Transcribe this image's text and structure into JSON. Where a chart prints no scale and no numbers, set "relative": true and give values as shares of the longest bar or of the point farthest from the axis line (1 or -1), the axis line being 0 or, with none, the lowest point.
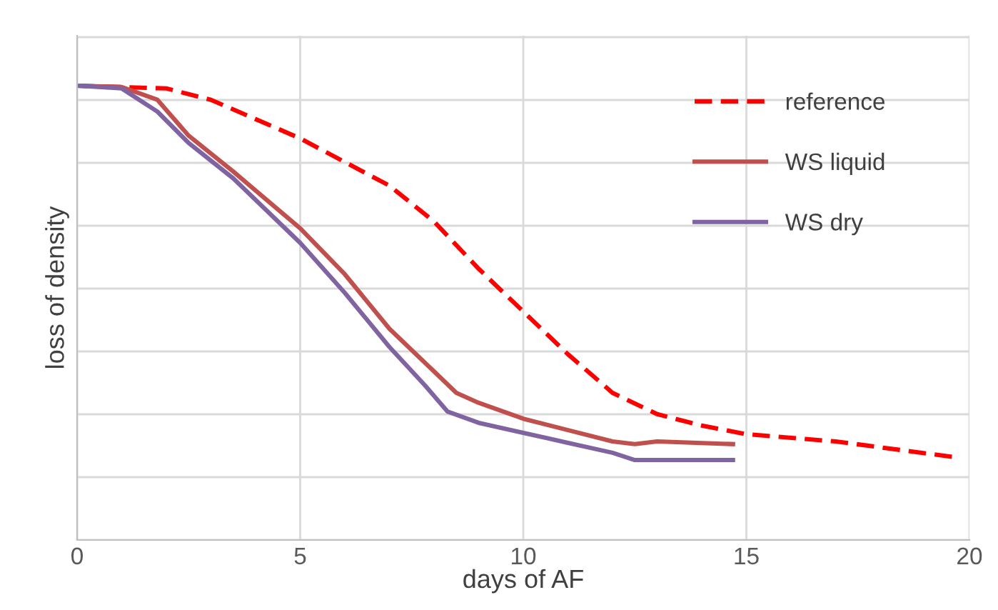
{
  "chart_data": {
    "type": "line",
    "xlabel": "days of AF",
    "ylabel": "loss of density",
    "relative": true,
    "xlim": [
      0,
      20
    ],
    "xticks": [
      0,
      5,
      10,
      15,
      20
    ],
    "grid": true,
    "legend": "top right",
    "series": [
      {
        "name": "reference",
        "color": "#ff0000",
        "line_style": "dashed",
        "x": [
          0,
          2,
          3,
          5,
          7,
          8,
          9,
          10,
          11,
          12,
          13,
          14,
          15,
          17,
          19.7
        ],
        "values": [
          1.0,
          0.994,
          0.969,
          0.884,
          0.78,
          0.701,
          0.597,
          0.503,
          0.409,
          0.324,
          0.277,
          0.252,
          0.233,
          0.217,
          0.182
        ]
      },
      {
        "name": "WS liquid",
        "color": "#c0504d",
        "line_style": "solid",
        "x": [
          0,
          1,
          1.8,
          2.5,
          3.5,
          5,
          6,
          7,
          8,
          8.5,
          9,
          10,
          11,
          12,
          12.5,
          13,
          14.7
        ],
        "values": [
          1.0,
          0.997,
          0.969,
          0.89,
          0.811,
          0.686,
          0.585,
          0.465,
          0.371,
          0.324,
          0.302,
          0.267,
          0.242,
          0.217,
          0.211,
          0.217,
          0.211
        ]
      },
      {
        "name": "WS dry",
        "color": "#8064a2",
        "line_style": "solid",
        "x": [
          0,
          1,
          1.8,
          2.5,
          3.5,
          5,
          6,
          7,
          7.8,
          8.3,
          9,
          10,
          11,
          12,
          12.5,
          14.7
        ],
        "values": [
          1.0,
          0.994,
          0.943,
          0.874,
          0.796,
          0.654,
          0.544,
          0.425,
          0.34,
          0.283,
          0.258,
          0.236,
          0.214,
          0.192,
          0.176,
          0.176
        ]
      }
    ]
  }
}
